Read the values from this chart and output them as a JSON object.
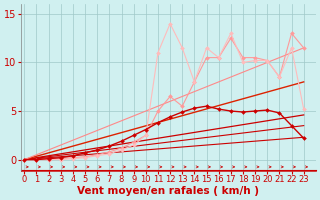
{
  "bg_color": "#d0f0f0",
  "grid_color": "#a0c8c8",
  "axis_color": "#808080",
  "xlabel": "Vent moyen/en rafales ( km/h )",
  "xlabel_color": "#cc0000",
  "xlabel_fontsize": 7.5,
  "tick_color": "#cc0000",
  "tick_fontsize": 6,
  "ytick_color": "#cc0000",
  "ytick_fontsize": 7,
  "ylim": [
    -1.2,
    16
  ],
  "xlim": [
    -0.3,
    24
  ],
  "yticks": [
    0,
    5,
    10,
    15
  ],
  "xticks": [
    0,
    1,
    2,
    3,
    4,
    5,
    6,
    7,
    8,
    9,
    10,
    11,
    12,
    13,
    14,
    15,
    16,
    17,
    18,
    19,
    20,
    21,
    22,
    23
  ],
  "lines": [
    {
      "comment": "straight line slope ~0.1 per unit",
      "x": [
        0,
        23
      ],
      "y": [
        0,
        2.3
      ],
      "color": "#cc0000",
      "lw": 0.8,
      "marker": null,
      "zorder": 2
    },
    {
      "comment": "straight line slope ~0.15",
      "x": [
        0,
        23
      ],
      "y": [
        0,
        3.5
      ],
      "color": "#cc0000",
      "lw": 0.8,
      "marker": null,
      "zorder": 2
    },
    {
      "comment": "straight line slope ~0.2",
      "x": [
        0,
        23
      ],
      "y": [
        0,
        4.6
      ],
      "color": "#cc0000",
      "lw": 0.9,
      "marker": null,
      "zorder": 2
    },
    {
      "comment": "straight line slope ~0.35",
      "x": [
        0,
        23
      ],
      "y": [
        0,
        8.0
      ],
      "color": "#dd2200",
      "lw": 1.0,
      "marker": null,
      "zorder": 2
    },
    {
      "comment": "straight line slope ~0.5",
      "x": [
        0,
        23
      ],
      "y": [
        0,
        11.5
      ],
      "color": "#ff8888",
      "lw": 0.8,
      "marker": null,
      "zorder": 2
    },
    {
      "comment": "zigzag line with markers - medium red",
      "x": [
        0,
        1,
        2,
        3,
        4,
        5,
        6,
        7,
        8,
        9,
        10,
        11,
        12,
        13,
        14,
        15,
        16,
        17,
        18,
        19,
        20,
        21,
        22,
        23
      ],
      "y": [
        0,
        0.0,
        0.1,
        0.2,
        0.4,
        0.7,
        1.0,
        1.4,
        1.9,
        2.5,
        3.1,
        3.8,
        4.4,
        4.9,
        5.3,
        5.5,
        5.2,
        5.0,
        4.9,
        5.0,
        5.1,
        4.8,
        3.5,
        2.2
      ],
      "color": "#cc0000",
      "lw": 1.0,
      "marker": "D",
      "markersize": 2.0,
      "zorder": 4
    },
    {
      "comment": "zigzag line with markers - light pink",
      "x": [
        0,
        1,
        2,
        3,
        4,
        5,
        6,
        7,
        8,
        9,
        10,
        11,
        12,
        13,
        14,
        15,
        16,
        17,
        18,
        19,
        20,
        21,
        22,
        23
      ],
      "y": [
        0,
        0.0,
        0.0,
        0.1,
        0.2,
        0.3,
        0.5,
        0.8,
        1.2,
        1.8,
        2.5,
        5.0,
        6.5,
        5.5,
        8.0,
        10.5,
        10.5,
        12.5,
        10.5,
        10.5,
        10.2,
        8.5,
        13.0,
        11.5
      ],
      "color": "#ff9999",
      "lw": 0.8,
      "marker": "D",
      "markersize": 2.0,
      "zorder": 3
    },
    {
      "comment": "very light pink zigzag - top spiky line",
      "x": [
        0,
        1,
        2,
        3,
        4,
        5,
        6,
        7,
        8,
        9,
        10,
        11,
        12,
        13,
        14,
        15,
        16,
        17,
        18,
        19,
        20,
        21,
        22,
        23
      ],
      "y": [
        0,
        0.0,
        0.0,
        0.0,
        0.1,
        0.2,
        0.4,
        0.6,
        1.0,
        1.5,
        2.5,
        11.0,
        14.0,
        11.5,
        8.0,
        11.5,
        10.5,
        13.0,
        10.0,
        10.2,
        10.2,
        8.5,
        11.5,
        5.2
      ],
      "color": "#ffbbbb",
      "lw": 0.8,
      "marker": "D",
      "markersize": 2.0,
      "zorder": 3
    }
  ]
}
